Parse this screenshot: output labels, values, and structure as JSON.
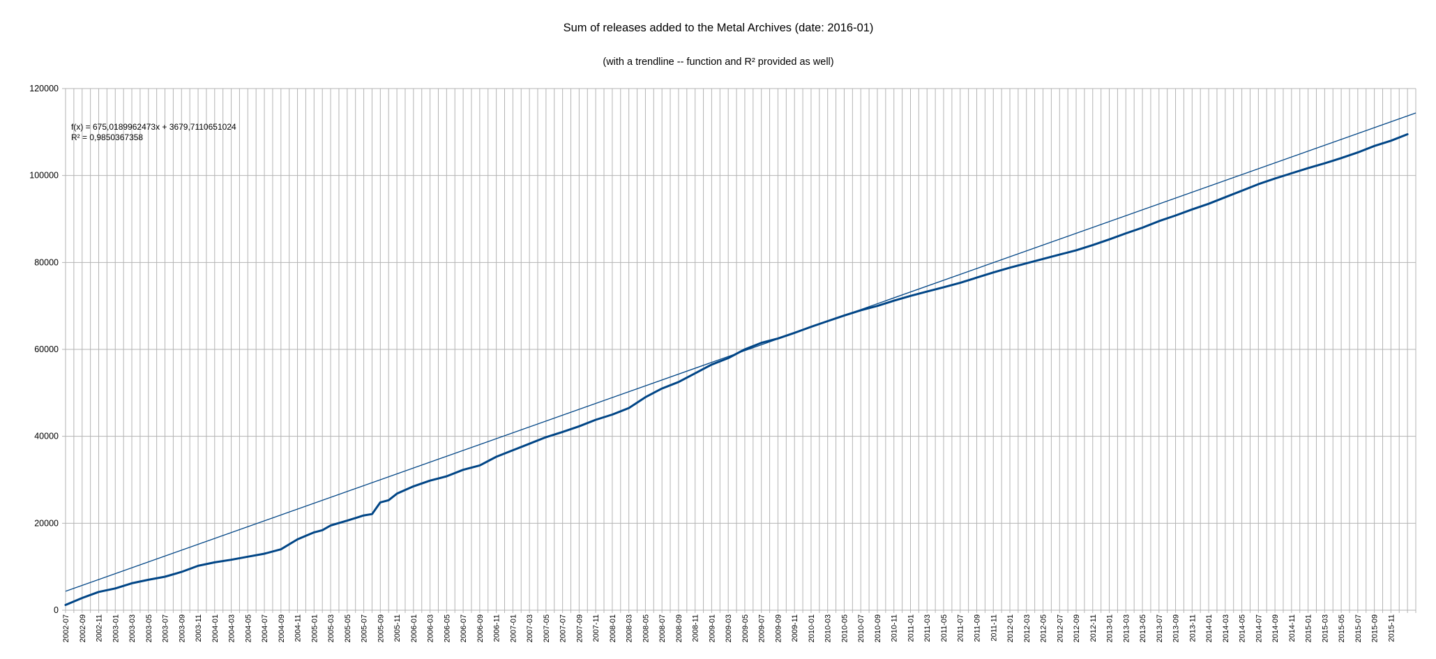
{
  "chart_data": {
    "type": "line",
    "title": "Sum of releases added to the Metal Archives (date: 2016-01)",
    "subtitle": "(with a trendline -- function and R² provided as well)",
    "xlabel": "",
    "ylabel": "",
    "ylim": [
      0,
      120000
    ],
    "y_ticks": [
      0,
      20000,
      40000,
      60000,
      80000,
      100000,
      120000
    ],
    "grid": true,
    "x_start": "2002-07",
    "x_tick_labels": [
      "2002-07",
      "2002-09",
      "2002-11",
      "2003-01",
      "2003-03",
      "2003-05",
      "2003-07",
      "2003-09",
      "2003-11",
      "2004-01",
      "2004-03",
      "2004-05",
      "2004-07",
      "2004-09",
      "2004-11",
      "2005-01",
      "2005-03",
      "2005-05",
      "2005-07",
      "2005-09",
      "2005-11",
      "2006-01",
      "2006-03",
      "2006-05",
      "2006-07",
      "2006-09",
      "2006-11",
      "2007-01",
      "2007-03",
      "2007-05",
      "2007-07",
      "2007-09",
      "2007-11",
      "2008-01",
      "2008-03",
      "2008-05",
      "2008-07",
      "2008-09",
      "2008-11",
      "2009-01",
      "2009-03",
      "2009-05",
      "2009-07",
      "2009-09",
      "2009-11",
      "2010-01",
      "2010-03",
      "2010-05",
      "2010-07",
      "2010-09",
      "2010-11",
      "2011-01",
      "2011-03",
      "2011-05",
      "2011-07",
      "2011-09",
      "2011-11",
      "2012-01",
      "2012-03",
      "2012-05",
      "2012-07",
      "2012-09",
      "2012-11",
      "2013-01",
      "2013-03",
      "2013-05",
      "2013-07",
      "2013-09",
      "2013-11",
      "2014-01",
      "2014-03",
      "2014-05",
      "2014-07",
      "2014-09",
      "2014-11",
      "2015-01",
      "2015-03",
      "2015-05",
      "2015-07",
      "2015-09",
      "2015-11"
    ],
    "series": [
      {
        "color": "#004586",
        "x_step": "monthly",
        "anchors": [
          [
            "2002-07",
            1200
          ],
          [
            "2002-09",
            2800
          ],
          [
            "2002-11",
            4200
          ],
          [
            "2003-01",
            5000
          ],
          [
            "2003-03",
            6200
          ],
          [
            "2003-05",
            7000
          ],
          [
            "2003-07",
            7700
          ],
          [
            "2003-09",
            8800
          ],
          [
            "2003-11",
            10200
          ],
          [
            "2004-01",
            11000
          ],
          [
            "2004-03",
            11600
          ],
          [
            "2004-05",
            12300
          ],
          [
            "2004-07",
            13000
          ],
          [
            "2004-09",
            14000
          ],
          [
            "2004-11",
            16300
          ],
          [
            "2005-01",
            17900
          ],
          [
            "2005-02",
            18400
          ],
          [
            "2005-03",
            19500
          ],
          [
            "2005-05",
            20600
          ],
          [
            "2005-07",
            21800
          ],
          [
            "2005-08",
            22100
          ],
          [
            "2005-09",
            24800
          ],
          [
            "2005-10",
            25300
          ],
          [
            "2005-11",
            26800
          ],
          [
            "2006-01",
            28500
          ],
          [
            "2006-03",
            29800
          ],
          [
            "2006-05",
            30800
          ],
          [
            "2006-07",
            32300
          ],
          [
            "2006-09",
            33300
          ],
          [
            "2006-11",
            35300
          ],
          [
            "2007-01",
            36800
          ],
          [
            "2007-03",
            38300
          ],
          [
            "2007-05",
            39800
          ],
          [
            "2007-07",
            41000
          ],
          [
            "2007-09",
            42300
          ],
          [
            "2007-11",
            43800
          ],
          [
            "2008-01",
            45000
          ],
          [
            "2008-03",
            46500
          ],
          [
            "2008-05",
            49000
          ],
          [
            "2008-07",
            51000
          ],
          [
            "2008-09",
            52500
          ],
          [
            "2008-11",
            54500
          ],
          [
            "2009-01",
            56500
          ],
          [
            "2009-03",
            58000
          ],
          [
            "2009-05",
            60000
          ],
          [
            "2009-07",
            61500
          ],
          [
            "2009-09",
            62500
          ],
          [
            "2009-11",
            63800
          ],
          [
            "2010-01",
            65200
          ],
          [
            "2010-03",
            66500
          ],
          [
            "2010-05",
            67800
          ],
          [
            "2010-07",
            69000
          ],
          [
            "2010-09",
            70000
          ],
          [
            "2010-11",
            71200
          ],
          [
            "2011-01",
            72300
          ],
          [
            "2011-03",
            73300
          ],
          [
            "2011-05",
            74300
          ],
          [
            "2011-07",
            75300
          ],
          [
            "2011-09",
            76500
          ],
          [
            "2011-11",
            77700
          ],
          [
            "2012-01",
            78800
          ],
          [
            "2012-03",
            79800
          ],
          [
            "2012-05",
            80800
          ],
          [
            "2012-07",
            81800
          ],
          [
            "2012-09",
            82800
          ],
          [
            "2012-11",
            84000
          ],
          [
            "2013-01",
            85300
          ],
          [
            "2013-03",
            86700
          ],
          [
            "2013-05",
            88000
          ],
          [
            "2013-07",
            89500
          ],
          [
            "2013-09",
            90800
          ],
          [
            "2013-11",
            92200
          ],
          [
            "2014-01",
            93500
          ],
          [
            "2014-03",
            95000
          ],
          [
            "2014-05",
            96500
          ],
          [
            "2014-07",
            98000
          ],
          [
            "2014-09",
            99300
          ],
          [
            "2014-11",
            100500
          ],
          [
            "2015-01",
            101700
          ],
          [
            "2015-03",
            102800
          ],
          [
            "2015-05",
            104000
          ],
          [
            "2015-07",
            105300
          ],
          [
            "2015-09",
            106800
          ],
          [
            "2015-11",
            108000
          ],
          [
            "2016-01",
            109500
          ]
        ]
      }
    ],
    "trendline": {
      "type": "linear",
      "color": "#004586",
      "slope": 675.0189962473,
      "intercept": 3679.7110651024,
      "equation_label": "f(x) = 675,0189962473x + 3679,7110651024",
      "r2_label": "R² = 0,9850367358"
    }
  }
}
